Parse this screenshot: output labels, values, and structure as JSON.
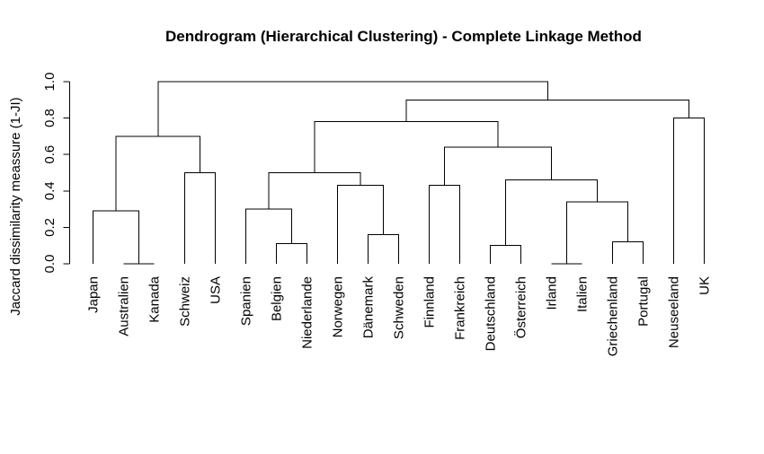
{
  "chart_data": {
    "type": "dendrogram",
    "title": "Dendrogram (Hierarchical Clustering) - Complete Linkage Method",
    "ylabel": "Jaccard dissimilarity meassure (1-JI)",
    "linkage_method": "complete",
    "orientation": "leaves-bottom",
    "ylim": [
      0.0,
      1.0
    ],
    "y_ticks": [
      0.0,
      0.2,
      0.4,
      0.6,
      0.8,
      1.0
    ],
    "grid": false,
    "line_color": "#000000",
    "background_color": "#ffffff",
    "leaves": [
      "Japan",
      "Australien",
      "Kanada",
      "Schweiz",
      "USA",
      "Spanien",
      "Belgien",
      "Niederlande",
      "Norwegen",
      "Dänemark",
      "Schweden",
      "Finnland",
      "Frankreich",
      "Deutschland",
      "Österreich",
      "Irland",
      "Italien",
      "Griechenland",
      "Portugal",
      "Neuseeland",
      "UK"
    ],
    "merge_convention": "R hclust style: negative index = leaf number (1-based), positive index = earlier merge row (1-based); third value = merge height",
    "merges": [
      [
        -2,
        -3,
        0.0
      ],
      [
        -16,
        -17,
        0.0
      ],
      [
        -14,
        -15,
        0.1
      ],
      [
        -7,
        -8,
        0.11
      ],
      [
        -18,
        -19,
        0.12
      ],
      [
        -10,
        -11,
        0.16
      ],
      [
        -1,
        1,
        0.29
      ],
      [
        -6,
        4,
        0.3
      ],
      [
        2,
        5,
        0.34
      ],
      [
        -12,
        -13,
        0.43
      ],
      [
        -9,
        6,
        0.43
      ],
      [
        3,
        9,
        0.46
      ],
      [
        -4,
        -5,
        0.5
      ],
      [
        8,
        11,
        0.5
      ],
      [
        10,
        12,
        0.64
      ],
      [
        7,
        13,
        0.7
      ],
      [
        14,
        15,
        0.78
      ],
      [
        -20,
        -21,
        0.8
      ],
      [
        17,
        18,
        0.9
      ],
      [
        16,
        19,
        1.0
      ]
    ]
  }
}
